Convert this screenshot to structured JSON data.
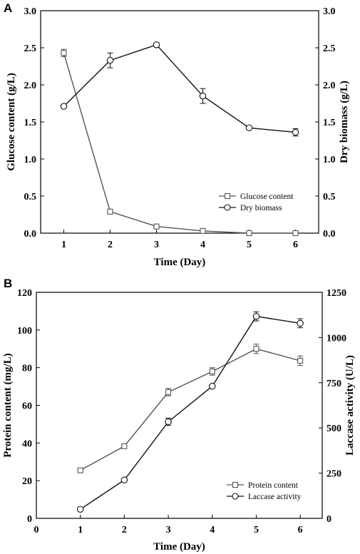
{
  "chart_data": [
    {
      "panel": "A",
      "type": "line",
      "xlabel": "Time (Day)",
      "ylabel_left": "Glucose content (g/L)",
      "ylabel_right": "Dry biomass (g/L)",
      "x_ticks": [
        "1",
        "2",
        "3",
        "4",
        "5",
        "6"
      ],
      "left_ticks": [
        "0.0",
        "0.5",
        "1.0",
        "1.5",
        "2.0",
        "2.5",
        "3.0"
      ],
      "right_ticks": [
        "0.0",
        "0.5",
        "1.0",
        "1.5",
        "2.0",
        "2.5",
        "3.0"
      ],
      "xlim": [
        0.5,
        6.5
      ],
      "ylim_left": [
        0,
        3
      ],
      "ylim_right": [
        0,
        3
      ],
      "legend_position": "bottom-right",
      "series": [
        {
          "name": "Glucose content",
          "axis": "left",
          "marker": "square",
          "color": "#555555",
          "x": [
            1,
            2,
            3,
            4,
            5,
            6
          ],
          "y": [
            2.43,
            0.29,
            0.09,
            0.03,
            0.0,
            0.0
          ],
          "err": [
            0.05,
            0.02,
            0.02,
            0.01,
            0.0,
            0.0
          ]
        },
        {
          "name": "Dry biomass",
          "axis": "right",
          "marker": "circle",
          "color": "#111111",
          "x": [
            1,
            2,
            3,
            4,
            5,
            6
          ],
          "y": [
            1.71,
            2.33,
            2.54,
            1.85,
            1.42,
            1.36
          ],
          "err": [
            0.02,
            0.1,
            0.02,
            0.1,
            0.02,
            0.05
          ]
        }
      ]
    },
    {
      "panel": "B",
      "type": "line",
      "xlabel": "Time (Day)",
      "ylabel_left": "Protein content (mg/L)",
      "ylabel_right": "Laccase activity (U/L)",
      "x_ticks": [
        "0",
        "1",
        "2",
        "3",
        "4",
        "5",
        "6"
      ],
      "left_ticks": [
        "0",
        "20",
        "40",
        "60",
        "80",
        "100",
        "120"
      ],
      "right_ticks": [
        "0",
        "250",
        "500",
        "750",
        "1000",
        "1250"
      ],
      "xlim": [
        0,
        6.5
      ],
      "ylim_left": [
        0,
        120
      ],
      "ylim_right": [
        0,
        1250
      ],
      "legend_position": "bottom-right",
      "series": [
        {
          "name": "Protein content",
          "axis": "left",
          "marker": "square",
          "color": "#555555",
          "x": [
            1,
            2,
            3,
            4,
            5,
            6
          ],
          "y": [
            25.5,
            38.3,
            67,
            78,
            90,
            83.7
          ],
          "err": [
            0.5,
            0.8,
            2,
            2,
            2.5,
            2.5
          ]
        },
        {
          "name": "Laccase activity",
          "axis": "right",
          "marker": "circle",
          "color": "#111111",
          "x": [
            1,
            2,
            3,
            4,
            5,
            6
          ],
          "y": [
            50,
            212,
            534,
            731,
            1117,
            1079
          ],
          "err": [
            5,
            8,
            20,
            8,
            25,
            25
          ]
        }
      ]
    }
  ]
}
